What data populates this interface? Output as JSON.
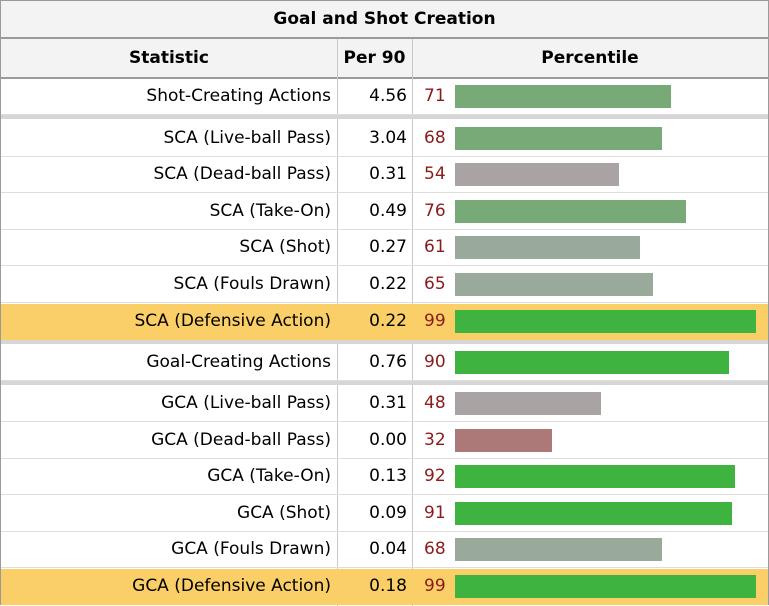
{
  "title": "Goal and Shot Creation",
  "columns": {
    "statistic": "Statistic",
    "per90": "Per 90",
    "percentile": "Percentile"
  },
  "colors": {
    "highlight_row": "#fbcf67",
    "percentile_text": "#8b1a1a",
    "bar_high": "#3fb33f",
    "bar_mid_green": "#78aa78",
    "bar_grey_green": "#9aaa9a",
    "bar_grey": "#aaa3a3",
    "bar_red": "#ad7878"
  },
  "rows": [
    {
      "stat": "Shot-Creating Actions",
      "per90": "4.56",
      "percentile": "71"
    },
    {
      "stat": "SCA (Live-ball Pass)",
      "per90": "3.04",
      "percentile": "68"
    },
    {
      "stat": "SCA (Dead-ball Pass)",
      "per90": "0.31",
      "percentile": "54"
    },
    {
      "stat": "SCA (Take-On)",
      "per90": "0.49",
      "percentile": "76"
    },
    {
      "stat": "SCA (Shot)",
      "per90": "0.27",
      "percentile": "61"
    },
    {
      "stat": "SCA (Fouls Drawn)",
      "per90": "0.22",
      "percentile": "65"
    },
    {
      "stat": "SCA (Defensive Action)",
      "per90": "0.22",
      "percentile": "99"
    },
    {
      "stat": "Goal-Creating Actions",
      "per90": "0.76",
      "percentile": "90"
    },
    {
      "stat": "GCA (Live-ball Pass)",
      "per90": "0.31",
      "percentile": "48"
    },
    {
      "stat": "GCA (Dead-ball Pass)",
      "per90": "0.00",
      "percentile": "32"
    },
    {
      "stat": "GCA (Take-On)",
      "per90": "0.13",
      "percentile": "92"
    },
    {
      "stat": "GCA (Shot)",
      "per90": "0.09",
      "percentile": "91"
    },
    {
      "stat": "GCA (Fouls Drawn)",
      "per90": "0.04",
      "percentile": "68"
    },
    {
      "stat": "GCA (Defensive Action)",
      "per90": "0.18",
      "percentile": "99"
    }
  ]
}
